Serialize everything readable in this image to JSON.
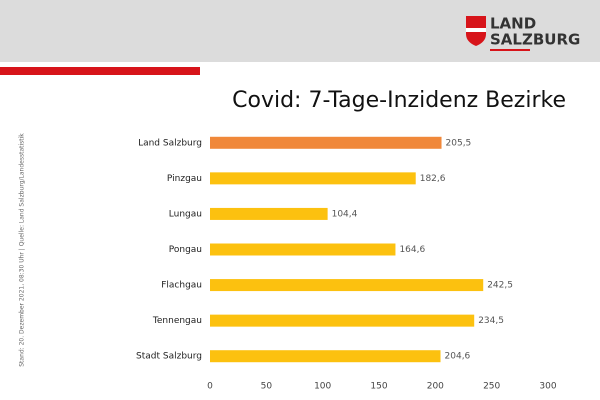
{
  "header": {
    "logo_line1": "LAND",
    "logo_line2": "SALZBURG"
  },
  "footnote": "Stand: 20. Dezember  2021, 08:30 Uhr  |  Quelle: Land Salzburg/Landesstatistik",
  "chart_data": {
    "type": "bar",
    "orientation": "horizontal",
    "title": "Covid: 7-Tage-Inzidenz Bezirke",
    "categories": [
      "Land Salzburg",
      "Pinzgau",
      "Lungau",
      "Pongau",
      "Flachgau",
      "Tennengau",
      "Stadt Salzburg"
    ],
    "values": [
      205.5,
      182.6,
      104.4,
      164.6,
      242.5,
      234.5,
      204.6
    ],
    "value_labels": [
      "205,5",
      "182,6",
      "104,4",
      "164,6",
      "242,5",
      "234,5",
      "204,6"
    ],
    "colors": [
      "#f0883a",
      "#fcc10f",
      "#fcc10f",
      "#fcc10f",
      "#fcc10f",
      "#fcc10f",
      "#fcc10f"
    ],
    "xlim": [
      0,
      300
    ],
    "xticks": [
      0,
      50,
      100,
      150,
      200,
      250,
      300
    ],
    "grid": false
  }
}
